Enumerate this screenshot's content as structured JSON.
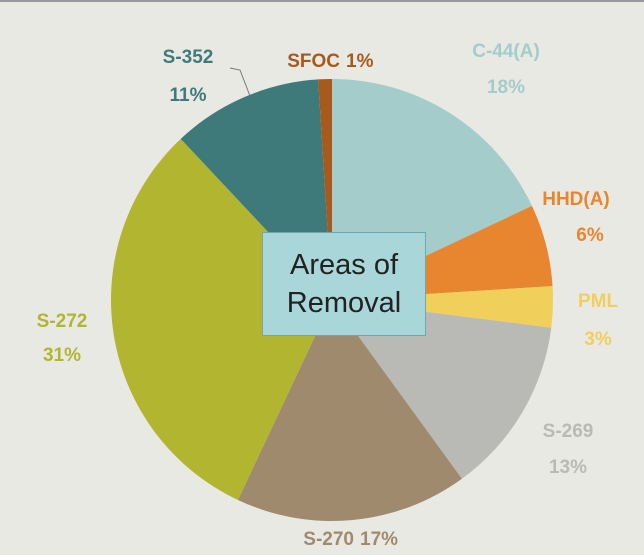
{
  "chart_data": {
    "type": "pie",
    "title": "Areas of Removal",
    "categories": [
      "C-44(A)",
      "HHD(A)",
      "PML",
      "S-269",
      "S-270",
      "S-272",
      "S-352",
      "SFOC"
    ],
    "values": [
      18,
      6,
      3,
      13,
      17,
      31,
      11,
      1
    ],
    "value_labels": [
      "18%",
      "6%",
      "3%",
      "13%",
      "17%",
      "31%",
      "11%",
      "1%"
    ],
    "colors": [
      "#a3cccb",
      "#e8862f",
      "#f0cf5a",
      "#b9b9b5",
      "#a08a6e",
      "#b1b52f",
      "#3f7a7a",
      "#a8591c"
    ]
  }
}
